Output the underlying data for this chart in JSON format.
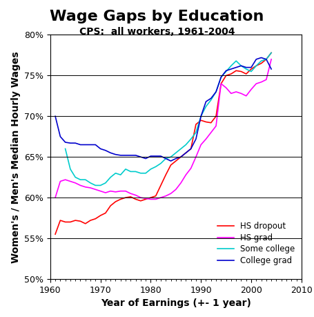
{
  "title": "Wage Gaps by Education",
  "subtitle": "CPS:  all workers, 1961-2004",
  "xlabel": "Year of Earnings (+- 1 year)",
  "ylabel": "Women's / Men's Median Hourly Wages",
  "xlim": [
    1960,
    2010
  ],
  "ylim": [
    0.5,
    0.8
  ],
  "yticks": [
    0.5,
    0.55,
    0.6,
    0.65,
    0.7,
    0.75,
    0.8
  ],
  "xticks": [
    1960,
    1970,
    1980,
    1990,
    2000,
    2010
  ],
  "series": {
    "HS dropout": {
      "color": "#ff0000",
      "data": [
        [
          1961,
          0.555
        ],
        [
          1962,
          0.572
        ],
        [
          1963,
          0.57
        ],
        [
          1964,
          0.57
        ],
        [
          1965,
          0.572
        ],
        [
          1966,
          0.571
        ],
        [
          1967,
          0.568
        ],
        [
          1968,
          0.572
        ],
        [
          1969,
          0.574
        ],
        [
          1970,
          0.578
        ],
        [
          1971,
          0.581
        ],
        [
          1972,
          0.59
        ],
        [
          1973,
          0.595
        ],
        [
          1974,
          0.598
        ],
        [
          1975,
          0.6
        ],
        [
          1976,
          0.601
        ],
        [
          1977,
          0.598
        ],
        [
          1978,
          0.596
        ],
        [
          1979,
          0.598
        ],
        [
          1980,
          0.6
        ],
        [
          1981,
          0.602
        ],
        [
          1982,
          0.615
        ],
        [
          1983,
          0.628
        ],
        [
          1984,
          0.64
        ],
        [
          1985,
          0.645
        ],
        [
          1986,
          0.65
        ],
        [
          1987,
          0.655
        ],
        [
          1988,
          0.66
        ],
        [
          1989,
          0.69
        ],
        [
          1990,
          0.695
        ],
        [
          1991,
          0.693
        ],
        [
          1992,
          0.692
        ],
        [
          1993,
          0.7
        ],
        [
          1994,
          0.74
        ],
        [
          1995,
          0.75
        ],
        [
          1996,
          0.752
        ],
        [
          1997,
          0.756
        ],
        [
          1998,
          0.755
        ],
        [
          1999,
          0.752
        ],
        [
          2000,
          0.758
        ],
        [
          2001,
          0.762
        ],
        [
          2002,
          0.765
        ],
        [
          2003,
          0.77
        ],
        [
          2004,
          0.778
        ]
      ]
    },
    "HS grad": {
      "color": "#ff00ff",
      "data": [
        [
          1961,
          0.6
        ],
        [
          1962,
          0.62
        ],
        [
          1963,
          0.622
        ],
        [
          1964,
          0.62
        ],
        [
          1965,
          0.618
        ],
        [
          1966,
          0.615
        ],
        [
          1967,
          0.613
        ],
        [
          1968,
          0.612
        ],
        [
          1969,
          0.61
        ],
        [
          1970,
          0.608
        ],
        [
          1971,
          0.606
        ],
        [
          1972,
          0.608
        ],
        [
          1973,
          0.607
        ],
        [
          1974,
          0.608
        ],
        [
          1975,
          0.608
        ],
        [
          1976,
          0.605
        ],
        [
          1977,
          0.603
        ],
        [
          1978,
          0.6
        ],
        [
          1979,
          0.599
        ],
        [
          1980,
          0.598
        ],
        [
          1981,
          0.598
        ],
        [
          1982,
          0.6
        ],
        [
          1983,
          0.602
        ],
        [
          1984,
          0.605
        ],
        [
          1985,
          0.61
        ],
        [
          1986,
          0.618
        ],
        [
          1987,
          0.628
        ],
        [
          1988,
          0.636
        ],
        [
          1989,
          0.65
        ],
        [
          1990,
          0.665
        ],
        [
          1991,
          0.672
        ],
        [
          1992,
          0.68
        ],
        [
          1993,
          0.688
        ],
        [
          1994,
          0.74
        ],
        [
          1995,
          0.735
        ],
        [
          1996,
          0.728
        ],
        [
          1997,
          0.73
        ],
        [
          1998,
          0.728
        ],
        [
          1999,
          0.725
        ],
        [
          2000,
          0.733
        ],
        [
          2001,
          0.74
        ],
        [
          2002,
          0.742
        ],
        [
          2003,
          0.745
        ],
        [
          2004,
          0.77
        ]
      ]
    },
    "Some college": {
      "color": "#00cccc",
      "data": [
        [
          1963,
          0.66
        ],
        [
          1964,
          0.635
        ],
        [
          1965,
          0.625
        ],
        [
          1966,
          0.622
        ],
        [
          1967,
          0.622
        ],
        [
          1968,
          0.618
        ],
        [
          1969,
          0.615
        ],
        [
          1970,
          0.615
        ],
        [
          1971,
          0.618
        ],
        [
          1972,
          0.625
        ],
        [
          1973,
          0.63
        ],
        [
          1974,
          0.628
        ],
        [
          1975,
          0.635
        ],
        [
          1976,
          0.632
        ],
        [
          1977,
          0.632
        ],
        [
          1978,
          0.63
        ],
        [
          1979,
          0.63
        ],
        [
          1980,
          0.635
        ],
        [
          1981,
          0.638
        ],
        [
          1982,
          0.642
        ],
        [
          1983,
          0.648
        ],
        [
          1984,
          0.65
        ],
        [
          1985,
          0.655
        ],
        [
          1986,
          0.66
        ],
        [
          1987,
          0.665
        ],
        [
          1988,
          0.672
        ],
        [
          1989,
          0.68
        ],
        [
          1990,
          0.7
        ],
        [
          1991,
          0.712
        ],
        [
          1992,
          0.72
        ],
        [
          1993,
          0.73
        ],
        [
          1994,
          0.748
        ],
        [
          1995,
          0.755
        ],
        [
          1996,
          0.762
        ],
        [
          1997,
          0.768
        ],
        [
          1998,
          0.762
        ],
        [
          1999,
          0.758
        ],
        [
          2000,
          0.755
        ],
        [
          2001,
          0.762
        ],
        [
          2002,
          0.768
        ],
        [
          2003,
          0.77
        ],
        [
          2004,
          0.778
        ]
      ]
    },
    "College grad": {
      "color": "#0000cc",
      "data": [
        [
          1961,
          0.7
        ],
        [
          1962,
          0.675
        ],
        [
          1963,
          0.668
        ],
        [
          1964,
          0.667
        ],
        [
          1965,
          0.667
        ],
        [
          1966,
          0.665
        ],
        [
          1967,
          0.665
        ],
        [
          1968,
          0.665
        ],
        [
          1969,
          0.665
        ],
        [
          1970,
          0.66
        ],
        [
          1971,
          0.658
        ],
        [
          1972,
          0.655
        ],
        [
          1973,
          0.653
        ],
        [
          1974,
          0.652
        ],
        [
          1975,
          0.652
        ],
        [
          1976,
          0.652
        ],
        [
          1977,
          0.652
        ],
        [
          1978,
          0.65
        ],
        [
          1979,
          0.648
        ],
        [
          1980,
          0.651
        ],
        [
          1981,
          0.651
        ],
        [
          1982,
          0.651
        ],
        [
          1983,
          0.648
        ],
        [
          1984,
          0.645
        ],
        [
          1985,
          0.648
        ],
        [
          1986,
          0.65
        ],
        [
          1987,
          0.655
        ],
        [
          1988,
          0.66
        ],
        [
          1989,
          0.672
        ],
        [
          1990,
          0.7
        ],
        [
          1991,
          0.718
        ],
        [
          1992,
          0.722
        ],
        [
          1993,
          0.73
        ],
        [
          1994,
          0.748
        ],
        [
          1995,
          0.756
        ],
        [
          1996,
          0.758
        ],
        [
          1997,
          0.76
        ],
        [
          1998,
          0.762
        ],
        [
          1999,
          0.76
        ],
        [
          2000,
          0.76
        ],
        [
          2001,
          0.77
        ],
        [
          2002,
          0.772
        ],
        [
          2003,
          0.77
        ],
        [
          2004,
          0.758
        ]
      ]
    }
  },
  "title_fontsize": 16,
  "subtitle_fontsize": 10,
  "label_fontsize": 10,
  "tick_fontsize": 9
}
